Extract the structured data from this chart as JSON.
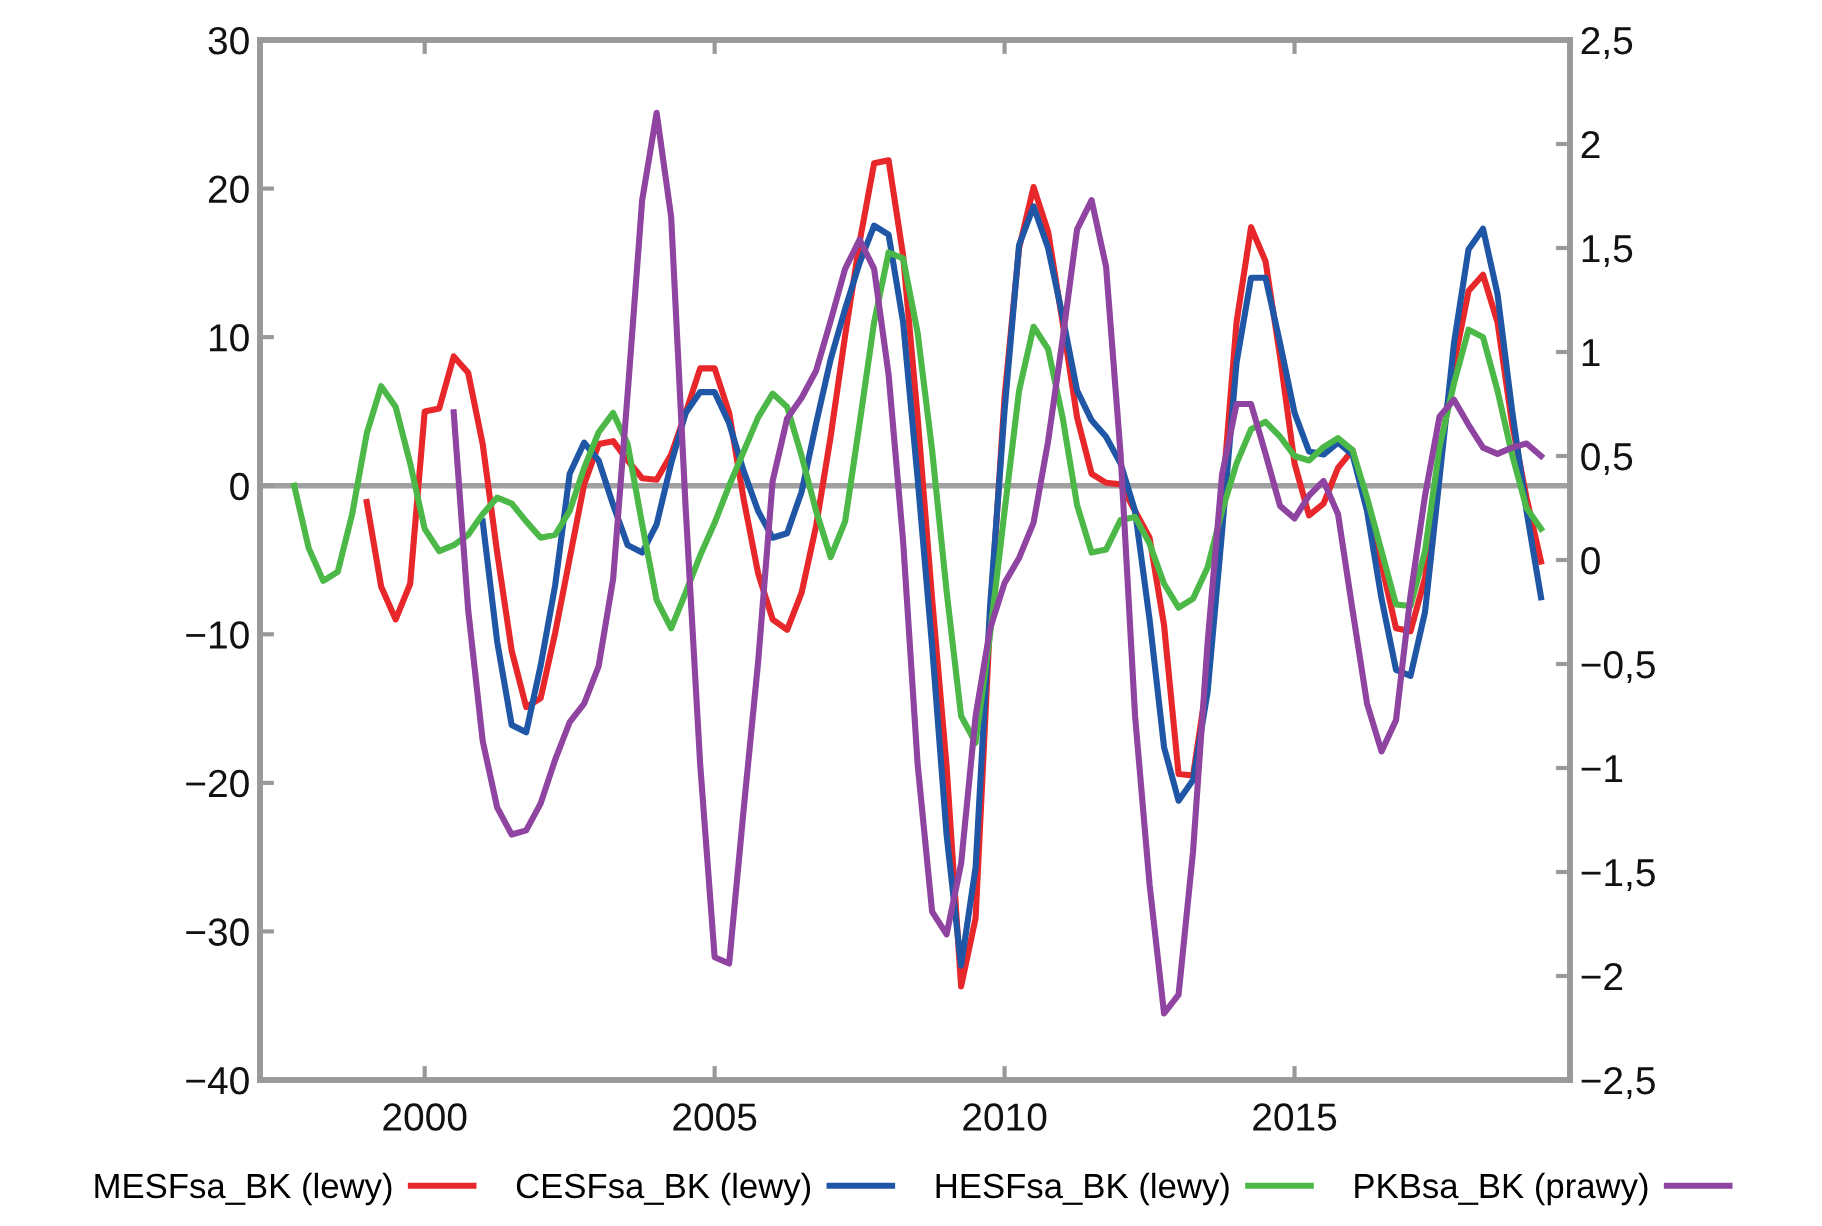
{
  "chart_data": {
    "type": "line",
    "xlim": [
      1997.16,
      2019.75
    ],
    "xticks": [
      2000,
      2005,
      2010,
      2015
    ],
    "ylim": [
      -40,
      30
    ],
    "yticks": [
      {
        "value": -40,
        "label": "−40"
      },
      {
        "value": -30,
        "label": "−30"
      },
      {
        "value": -20,
        "label": "−20"
      },
      {
        "value": -10,
        "label": "−10"
      },
      0,
      10,
      20,
      30
    ],
    "y2lim": [
      -2.5,
      2.5
    ],
    "y2ticks": [
      {
        "value": -2.5,
        "label": "−2,5"
      },
      {
        "value": -2,
        "label": "−2"
      },
      {
        "value": -1.5,
        "label": "−1,5"
      },
      {
        "value": -1,
        "label": "−1"
      },
      {
        "value": -0.5,
        "label": "−0,5"
      },
      0,
      {
        "value": 0.5,
        "label": "0,5"
      },
      1,
      {
        "value": 1.5,
        "label": "1,5"
      },
      2,
      {
        "value": 2.5,
        "label": "2,5"
      }
    ],
    "grid": false,
    "legend": "bottom",
    "marker": "none",
    "line_style": "solid",
    "ref_lines": [
      {
        "axis": "y",
        "value": 0,
        "label": null,
        "color": "#a0a0a0"
      }
    ],
    "series": [
      {
        "name": "MESFsa_BK (lewy)",
        "color": "#e8272a",
        "x": [
          1999.0,
          1999.25,
          1999.5,
          1999.75,
          2000.0,
          2000.25,
          2000.5,
          2000.75,
          2001.0,
          2001.25,
          2001.5,
          2001.75,
          2002.0,
          2002.25,
          2002.5,
          2002.75,
          2003.0,
          2003.25,
          2003.5,
          2003.75,
          2004.0,
          2004.25,
          2004.5,
          2004.75,
          2005.0,
          2005.25,
          2005.5,
          2005.75,
          2006.0,
          2006.25,
          2006.5,
          2006.75,
          2007.0,
          2007.25,
          2007.5,
          2007.75,
          2008.0,
          2008.25,
          2008.5,
          2008.75,
          2009.0,
          2009.25,
          2009.5,
          2009.75,
          2010.0,
          2010.25,
          2010.5,
          2010.75,
          2011.0,
          2011.25,
          2011.5,
          2011.75,
          2012.0,
          2012.25,
          2012.5,
          2012.75,
          2013.0,
          2013.25,
          2013.5,
          2013.75,
          2014.0,
          2014.25,
          2014.5,
          2014.75,
          2015.0,
          2015.25,
          2015.5,
          2015.75,
          2016.0,
          2016.25,
          2016.5,
          2016.75,
          2017.0,
          2017.25,
          2017.5,
          2017.75,
          2018.0,
          2018.25,
          2018.5,
          2018.75,
          2019.0,
          2019.25
        ],
        "values": [
          -1.1,
          -6.8,
          -9.0,
          -6.6,
          5.0,
          5.2,
          8.7,
          7.6,
          2.8,
          -4.5,
          -11.1,
          -14.9,
          -14.3,
          -9.9,
          -4.9,
          0.1,
          2.8,
          3.0,
          1.7,
          0.5,
          0.4,
          2.1,
          4.9,
          7.9,
          7.9,
          4.9,
          -0.9,
          -5.9,
          -9.0,
          -9.7,
          -7.2,
          -2.7,
          3.3,
          10.1,
          16.4,
          21.7,
          21.9,
          15.5,
          4.6,
          -7.6,
          -18.9,
          -33.7,
          -29.1,
          -9.0,
          6.0,
          16.0,
          20.1,
          17.1,
          11.0,
          4.6,
          0.8,
          0.2,
          0.1,
          -1.7,
          -3.5,
          -9.4,
          -19.4,
          -19.5,
          -13.0,
          -1.0,
          11.0,
          17.4,
          15.1,
          8.7,
          1.5,
          -2.0,
          -1.2,
          1.2,
          2.4,
          -1.3,
          -5.3,
          -9.6,
          -9.8,
          -6.2,
          1.9,
          8.2,
          13.1,
          14.2,
          11.0,
          4.2,
          -0.8,
          -5.1
        ]
      },
      {
        "name": "CESFsa_BK (lewy)",
        "color": "#1f56a5",
        "x": [
          2001.0,
          2001.25,
          2001.5,
          2001.75,
          2002.0,
          2002.25,
          2002.5,
          2002.75,
          2003.0,
          2003.25,
          2003.5,
          2003.75,
          2004.0,
          2004.25,
          2004.5,
          2004.75,
          2005.0,
          2005.25,
          2005.5,
          2005.75,
          2006.0,
          2006.25,
          2006.5,
          2006.75,
          2007.0,
          2007.25,
          2007.5,
          2007.75,
          2008.0,
          2008.25,
          2008.5,
          2008.75,
          2009.0,
          2009.25,
          2009.5,
          2009.75,
          2010.0,
          2010.25,
          2010.5,
          2010.75,
          2011.0,
          2011.25,
          2011.5,
          2011.75,
          2012.0,
          2012.25,
          2012.5,
          2012.75,
          2013.0,
          2013.25,
          2013.5,
          2013.75,
          2014.0,
          2014.25,
          2014.5,
          2014.75,
          2015.0,
          2015.25,
          2015.5,
          2015.75,
          2016.0,
          2016.25,
          2016.5,
          2016.75,
          2017.0,
          2017.25,
          2017.5,
          2017.75,
          2018.0,
          2018.25,
          2018.5,
          2018.75,
          2019.0,
          2019.25
        ],
        "values": [
          -2.4,
          -10.5,
          -16.1,
          -16.6,
          -12.1,
          -6.7,
          0.8,
          2.9,
          1.7,
          -1.3,
          -4.0,
          -4.5,
          -2.6,
          1.5,
          4.9,
          6.3,
          6.3,
          4.2,
          1.0,
          -1.7,
          -3.5,
          -3.2,
          -0.4,
          4.2,
          8.5,
          11.9,
          15.0,
          17.5,
          16.9,
          11.0,
          0.5,
          -10.8,
          -23.5,
          -32.3,
          -25.7,
          -8.1,
          5.1,
          16.2,
          18.8,
          16.0,
          11.4,
          6.4,
          4.4,
          3.3,
          1.5,
          -1.7,
          -9.0,
          -17.6,
          -21.2,
          -19.8,
          -13.9,
          -3.1,
          8.3,
          14.0,
          14.0,
          9.6,
          4.9,
          2.3,
          2.1,
          2.9,
          2.1,
          -1.7,
          -7.6,
          -12.4,
          -12.8,
          -8.5,
          0.5,
          9.6,
          15.9,
          17.3,
          12.9,
          5.1,
          -1.7,
          -7.5
        ]
      },
      {
        "name": "HESFsa_BK (lewy)",
        "color": "#4cb848",
        "x": [
          1997.75,
          1998.0,
          1998.25,
          1998.5,
          1998.75,
          1999.0,
          1999.25,
          1999.5,
          1999.75,
          2000.0,
          2000.25,
          2000.5,
          2000.75,
          2001.0,
          2001.25,
          2001.5,
          2001.75,
          2002.0,
          2002.25,
          2002.5,
          2002.75,
          2003.0,
          2003.25,
          2003.5,
          2003.75,
          2004.0,
          2004.25,
          2004.5,
          2004.75,
          2005.0,
          2005.25,
          2005.5,
          2005.75,
          2006.0,
          2006.25,
          2006.5,
          2006.75,
          2007.0,
          2007.25,
          2007.5,
          2007.75,
          2008.0,
          2008.25,
          2008.5,
          2008.75,
          2009.0,
          2009.25,
          2009.5,
          2009.75,
          2010.0,
          2010.25,
          2010.5,
          2010.75,
          2011.0,
          2011.25,
          2011.5,
          2011.75,
          2012.0,
          2012.25,
          2012.5,
          2012.75,
          2013.0,
          2013.25,
          2013.5,
          2013.75,
          2014.0,
          2014.25,
          2014.5,
          2014.75,
          2015.0,
          2015.25,
          2015.5,
          2015.75,
          2016.0,
          2016.25,
          2016.5,
          2016.75,
          2017.0,
          2017.25,
          2017.5,
          2017.75,
          2018.0,
          2018.25,
          2018.5,
          2018.75,
          2019.0,
          2019.25
        ],
        "values": [
          0.0,
          -4.2,
          -6.4,
          -5.8,
          -1.9,
          3.5,
          6.7,
          5.3,
          1.5,
          -2.9,
          -4.4,
          -4.0,
          -3.3,
          -1.9,
          -0.8,
          -1.2,
          -2.4,
          -3.5,
          -3.3,
          -1.7,
          1.2,
          3.6,
          4.9,
          2.8,
          -2.6,
          -7.7,
          -9.6,
          -7.2,
          -4.7,
          -2.5,
          0.0,
          2.3,
          4.6,
          6.2,
          5.3,
          2.0,
          -1.7,
          -4.8,
          -2.4,
          4.2,
          11.0,
          15.7,
          15.3,
          10.3,
          2.4,
          -7.1,
          -15.5,
          -17.3,
          -10.0,
          -1.7,
          6.4,
          10.7,
          9.2,
          4.6,
          -1.3,
          -4.5,
          -4.3,
          -2.3,
          -2.1,
          -3.9,
          -6.6,
          -8.2,
          -7.6,
          -5.5,
          -1.7,
          1.5,
          3.8,
          4.3,
          3.3,
          2.0,
          1.7,
          2.6,
          3.2,
          2.4,
          -0.8,
          -4.4,
          -8.0,
          -8.1,
          -4.4,
          2.6,
          6.9,
          10.5,
          10.0,
          6.4,
          2.1,
          -1.5,
          -2.9
        ]
      },
      {
        "name": "PKBsa_BK (prawy)",
        "color": "#8e44a0",
        "axis": "y2",
        "x": [
          2000.5,
          2000.75,
          2001.0,
          2001.25,
          2001.5,
          2001.75,
          2002.0,
          2002.25,
          2002.5,
          2002.75,
          2003.0,
          2003.25,
          2003.5,
          2003.75,
          2004.0,
          2004.25,
          2004.5,
          2004.75,
          2005.0,
          2005.25,
          2005.5,
          2005.75,
          2006.0,
          2006.25,
          2006.5,
          2006.75,
          2007.0,
          2007.25,
          2007.5,
          2007.75,
          2008.0,
          2008.25,
          2008.5,
          2008.75,
          2009.0,
          2009.25,
          2009.5,
          2009.75,
          2010.0,
          2010.25,
          2010.5,
          2010.75,
          2011.0,
          2011.25,
          2011.5,
          2011.75,
          2012.0,
          2012.25,
          2012.5,
          2012.75,
          2013.0,
          2013.25,
          2013.5,
          2013.75,
          2014.0,
          2014.25,
          2014.5,
          2014.75,
          2015.0,
          2015.25,
          2015.5,
          2015.75,
          2016.0,
          2016.25,
          2016.5,
          2016.75,
          2017.0,
          2017.25,
          2017.5,
          2017.75,
          2018.0,
          2018.25,
          2018.5,
          2018.75,
          2019.0,
          2019.25
        ],
        "values": [
          0.71,
          -0.24,
          -0.87,
          -1.19,
          -1.32,
          -1.3,
          -1.17,
          -0.96,
          -0.78,
          -0.69,
          -0.51,
          -0.09,
          0.8,
          1.73,
          2.15,
          1.65,
          0.25,
          -0.98,
          -1.91,
          -1.94,
          -1.2,
          -0.49,
          0.38,
          0.68,
          0.78,
          0.91,
          1.15,
          1.4,
          1.54,
          1.4,
          0.89,
          0.09,
          -0.98,
          -1.69,
          -1.8,
          -1.46,
          -0.75,
          -0.33,
          -0.11,
          0.01,
          0.18,
          0.57,
          1.06,
          1.59,
          1.73,
          1.41,
          0.51,
          -0.75,
          -1.56,
          -2.18,
          -2.09,
          -1.4,
          -0.4,
          0.41,
          0.75,
          0.75,
          0.51,
          0.26,
          0.2,
          0.31,
          0.38,
          0.22,
          -0.24,
          -0.69,
          -0.92,
          -0.77,
          -0.17,
          0.31,
          0.69,
          0.77,
          0.65,
          0.54,
          0.51,
          0.54,
          0.56,
          0.5
        ]
      }
    ]
  }
}
